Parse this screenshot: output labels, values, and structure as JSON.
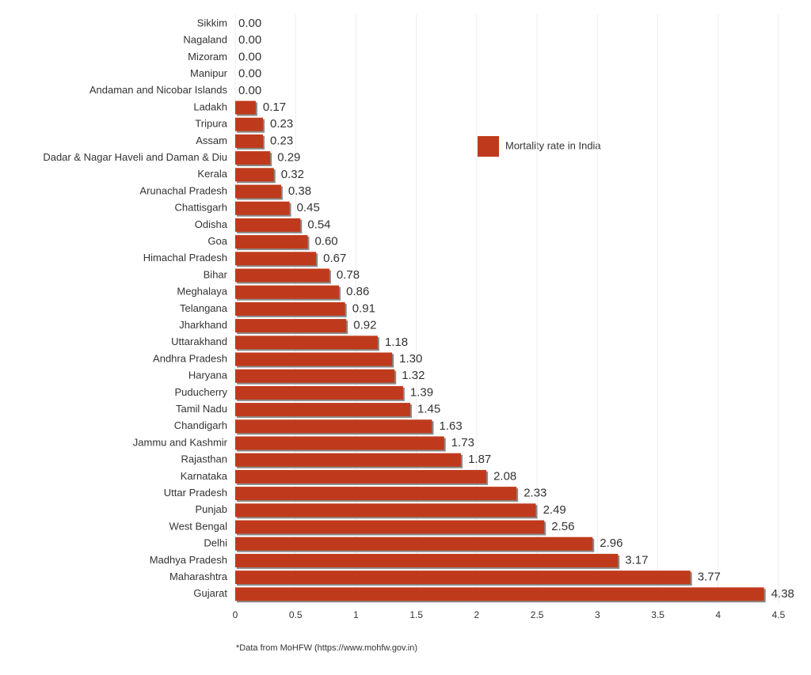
{
  "chart_data": {
    "type": "bar",
    "orientation": "horizontal",
    "categories": [
      "Sikkim",
      "Nagaland",
      "Mizoram",
      "Manipur",
      "Andaman and Nicobar Islands",
      "Ladakh",
      "Tripura",
      "Assam",
      "Dadar & Nagar Haveli and Daman & Diu",
      "Kerala",
      "Arunachal Pradesh",
      "Chattisgarh",
      "Odisha",
      "Goa",
      "Himachal Pradesh",
      "Bihar",
      "Meghalaya",
      "Telangana",
      "Jharkhand",
      "Uttarakhand",
      "Andhra Pradesh",
      "Haryana",
      "Puducherry",
      "Tamil Nadu",
      "Chandigarh",
      "Jammu and Kashmir",
      "Rajasthan",
      "Karnataka",
      "Uttar Pradesh",
      "Punjab",
      "West Bengal",
      "Delhi",
      "Madhya Pradesh",
      "Maharashtra",
      "Gujarat"
    ],
    "series": [
      {
        "name": "Mortality rate in India",
        "color": "#bf3a1c",
        "values": [
          0,
          0,
          0,
          0,
          0,
          0.17,
          0.23,
          0.23,
          0.29,
          0.32,
          0.38,
          0.45,
          0.54,
          0.6,
          0.67,
          0.78,
          0.86,
          0.91,
          0.92,
          1.18,
          1.3,
          1.32,
          1.39,
          1.45,
          1.63,
          1.73,
          1.87,
          2.08,
          2.33,
          2.49,
          2.56,
          2.96,
          3.17,
          3.77,
          4.38
        ],
        "value_labels": [
          "0.00",
          "0.00",
          "0.00",
          "0.00",
          "0.00",
          "0.17",
          "0.23",
          "0.23",
          "0.29",
          "0.32",
          "0.38",
          "0.45",
          "0.54",
          "0.60",
          "0.67",
          "0.78",
          "0.86",
          "0.91",
          "0.92",
          "1.18",
          "1.30",
          "1.32",
          "1.39",
          "1.45",
          "1.63",
          "1.73",
          "1.87",
          "2.08",
          "2.33",
          "2.49",
          "2.56",
          "2.96",
          "3.17",
          "3.77",
          "4.38"
        ]
      }
    ],
    "xlim": [
      0,
      4.5
    ],
    "xticks": [
      0,
      0.5,
      1,
      1.5,
      2,
      2.5,
      3,
      3.5,
      4,
      4.5
    ],
    "footnote": "*Data from MoHFW (https://www.mohfw.gov.in)"
  }
}
